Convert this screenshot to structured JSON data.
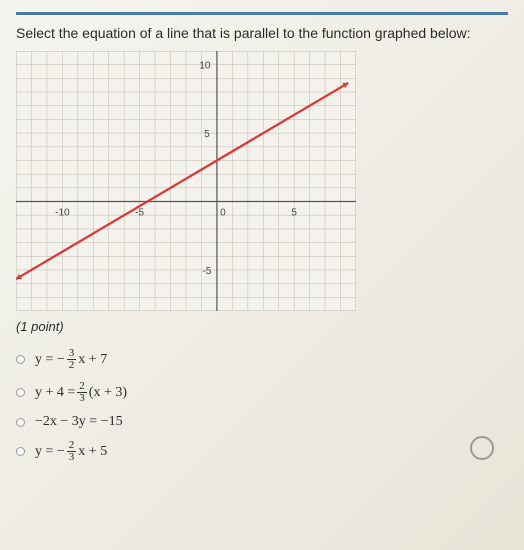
{
  "question": {
    "prompt": "Select the equation of a line that is parallel to the function graphed below:",
    "points_label": "(1 point)"
  },
  "chart": {
    "type": "line",
    "xlim": [
      -13,
      9
    ],
    "ylim": [
      -8,
      11
    ],
    "grid_step": 1,
    "grid_color": "#c8c3ba",
    "grid_width": 0.6,
    "axis_color": "#555555",
    "axis_width": 1.2,
    "frame_color": "#aaaaaa",
    "background_color": "#f4f2ec",
    "tick_labels": [
      {
        "x": -10,
        "y": 0,
        "text": "-10",
        "dy": 14
      },
      {
        "x": -5,
        "y": 0,
        "text": "-5",
        "dy": 14
      },
      {
        "x": 0,
        "y": 0,
        "text": "0",
        "dx": 6,
        "dy": 14
      },
      {
        "x": 5,
        "y": 0,
        "text": "5",
        "dy": 14
      },
      {
        "x": 0,
        "y": 5,
        "text": "5",
        "dx": -10
      },
      {
        "x": 0,
        "y": -5,
        "text": "-5",
        "dx": -10
      },
      {
        "x": 0,
        "y": 10,
        "text": "10",
        "dx": -12
      }
    ],
    "tick_fontsize": 10,
    "tick_color": "#444444",
    "series": {
      "color": "#d73a3a",
      "width": 2.3,
      "p1": {
        "x": -13,
        "y": -5.6667
      },
      "p2": {
        "x": 8.5,
        "y": 8.6667
      },
      "arrow_size": 6
    }
  },
  "options": [
    {
      "prefix": "y = −",
      "frac_num": "3",
      "frac_den": "2",
      "suffix": "x + 7"
    },
    {
      "prefix": "y + 4 = ",
      "frac_num": "2",
      "frac_den": "3",
      "suffix": "(x + 3)"
    },
    {
      "prefix": "−2x − 3y = −15",
      "frac_num": null,
      "frac_den": null,
      "suffix": ""
    },
    {
      "prefix": "y = −",
      "frac_num": "2",
      "frac_den": "3",
      "suffix": "x + 5"
    }
  ]
}
